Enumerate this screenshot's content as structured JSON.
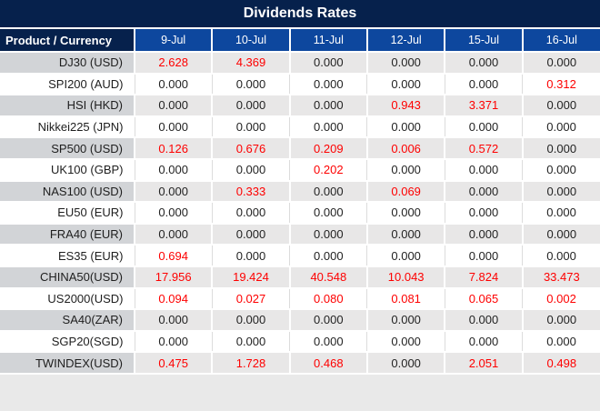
{
  "title": "Dividends Rates",
  "table": {
    "header": [
      "Product / Currency",
      "9-Jul",
      "10-Jul",
      "11-Jul",
      "12-Jul",
      "15-Jul",
      "16-Jul"
    ],
    "rows": [
      {
        "label": "DJ30 (USD)",
        "values": [
          "2.628",
          "4.369",
          "0.000",
          "0.000",
          "0.000",
          "0.000"
        ],
        "red": [
          true,
          true,
          false,
          false,
          false,
          false
        ]
      },
      {
        "label": "SPI200 (AUD)",
        "values": [
          "0.000",
          "0.000",
          "0.000",
          "0.000",
          "0.000",
          "0.312"
        ],
        "red": [
          false,
          false,
          false,
          false,
          false,
          true
        ]
      },
      {
        "label": "HSI (HKD)",
        "values": [
          "0.000",
          "0.000",
          "0.000",
          "0.943",
          "3.371",
          "0.000"
        ],
        "red": [
          false,
          false,
          false,
          true,
          true,
          false
        ]
      },
      {
        "label": "Nikkei225 (JPN)",
        "values": [
          "0.000",
          "0.000",
          "0.000",
          "0.000",
          "0.000",
          "0.000"
        ],
        "red": [
          false,
          false,
          false,
          false,
          false,
          false
        ]
      },
      {
        "label": "SP500 (USD)",
        "values": [
          "0.126",
          "0.676",
          "0.209",
          "0.006",
          "0.572",
          "0.000"
        ],
        "red": [
          true,
          true,
          true,
          true,
          true,
          false
        ]
      },
      {
        "label": "UK100 (GBP)",
        "values": [
          "0.000",
          "0.000",
          "0.202",
          "0.000",
          "0.000",
          "0.000"
        ],
        "red": [
          false,
          false,
          true,
          false,
          false,
          false
        ]
      },
      {
        "label": "NAS100 (USD)",
        "values": [
          "0.000",
          "0.333",
          "0.000",
          "0.069",
          "0.000",
          "0.000"
        ],
        "red": [
          false,
          true,
          false,
          true,
          false,
          false
        ]
      },
      {
        "label": "EU50 (EUR)",
        "values": [
          "0.000",
          "0.000",
          "0.000",
          "0.000",
          "0.000",
          "0.000"
        ],
        "red": [
          false,
          false,
          false,
          false,
          false,
          false
        ]
      },
      {
        "label": "FRA40 (EUR)",
        "values": [
          "0.000",
          "0.000",
          "0.000",
          "0.000",
          "0.000",
          "0.000"
        ],
        "red": [
          false,
          false,
          false,
          false,
          false,
          false
        ]
      },
      {
        "label": "ES35 (EUR)",
        "values": [
          "0.694",
          "0.000",
          "0.000",
          "0.000",
          "0.000",
          "0.000"
        ],
        "red": [
          true,
          false,
          false,
          false,
          false,
          false
        ]
      },
      {
        "label": "CHINA50(USD)",
        "values": [
          "17.956",
          "19.424",
          "40.548",
          "10.043",
          "7.824",
          "33.473"
        ],
        "red": [
          true,
          true,
          true,
          true,
          true,
          true
        ]
      },
      {
        "label": "US2000(USD)",
        "values": [
          "0.094",
          "0.027",
          "0.080",
          "0.081",
          "0.065",
          "0.002"
        ],
        "red": [
          true,
          true,
          true,
          true,
          true,
          true
        ]
      },
      {
        "label": "SA40(ZAR)",
        "values": [
          "0.000",
          "0.000",
          "0.000",
          "0.000",
          "0.000",
          "0.000"
        ],
        "red": [
          false,
          false,
          false,
          false,
          false,
          false
        ]
      },
      {
        "label": "SGP20(SGD)",
        "values": [
          "0.000",
          "0.000",
          "0.000",
          "0.000",
          "0.000",
          "0.000"
        ],
        "red": [
          false,
          false,
          false,
          false,
          false,
          false
        ]
      },
      {
        "label": "TWINDEX(USD)",
        "values": [
          "0.475",
          "1.728",
          "0.468",
          "0.000",
          "2.051",
          "0.498"
        ],
        "red": [
          true,
          true,
          true,
          false,
          true,
          true
        ]
      }
    ]
  },
  "colors": {
    "title_bar": "#06214C",
    "header_blue": "#0D479E",
    "row_gray_label": "#D2D4D7",
    "row_gray_value": "#E8E7E7",
    "row_white": "#FFFFFF",
    "footer_strip": "#E9E9E9",
    "red_value": "#FE0000",
    "black_value": "#232323"
  },
  "chart_data": {
    "type": "table",
    "title": "Dividends Rates",
    "columns": [
      "Product / Currency",
      "9-Jul",
      "10-Jul",
      "11-Jul",
      "12-Jul",
      "15-Jul",
      "16-Jul"
    ],
    "rows": [
      {
        "label": "DJ30 (USD)",
        "values": [
          2.628,
          4.369,
          0.0,
          0.0,
          0.0,
          0.0
        ]
      },
      {
        "label": "SPI200 (AUD)",
        "values": [
          0.0,
          0.0,
          0.0,
          0.0,
          0.0,
          0.312
        ]
      },
      {
        "label": "HSI (HKD)",
        "values": [
          0.0,
          0.0,
          0.0,
          0.943,
          3.371,
          0.0
        ]
      },
      {
        "label": "Nikkei225 (JPN)",
        "values": [
          0.0,
          0.0,
          0.0,
          0.0,
          0.0,
          0.0
        ]
      },
      {
        "label": "SP500 (USD)",
        "values": [
          0.126,
          0.676,
          0.209,
          0.006,
          0.572,
          0.0
        ]
      },
      {
        "label": "UK100 (GBP)",
        "values": [
          0.0,
          0.0,
          0.202,
          0.0,
          0.0,
          0.0
        ]
      },
      {
        "label": "NAS100 (USD)",
        "values": [
          0.0,
          0.333,
          0.0,
          0.069,
          0.0,
          0.0
        ]
      },
      {
        "label": "EU50 (EUR)",
        "values": [
          0.0,
          0.0,
          0.0,
          0.0,
          0.0,
          0.0
        ]
      },
      {
        "label": "FRA40 (EUR)",
        "values": [
          0.0,
          0.0,
          0.0,
          0.0,
          0.0,
          0.0
        ]
      },
      {
        "label": "ES35 (EUR)",
        "values": [
          0.694,
          0.0,
          0.0,
          0.0,
          0.0,
          0.0
        ]
      },
      {
        "label": "CHINA50(USD)",
        "values": [
          17.956,
          19.424,
          40.548,
          10.043,
          7.824,
          33.473
        ]
      },
      {
        "label": "US2000(USD)",
        "values": [
          0.094,
          0.027,
          0.08,
          0.081,
          0.065,
          0.002
        ]
      },
      {
        "label": "SA40(ZAR)",
        "values": [
          0.0,
          0.0,
          0.0,
          0.0,
          0.0,
          0.0
        ]
      },
      {
        "label": "SGP20(SGD)",
        "values": [
          0.0,
          0.0,
          0.0,
          0.0,
          0.0,
          0.0
        ]
      },
      {
        "label": "TWINDEX(USD)",
        "values": [
          0.475,
          1.728,
          0.468,
          0.0,
          2.051,
          0.498
        ]
      }
    ],
    "notes": "Non-zero dividend rates rendered in red; zero values in black. Striped rows alternate gray/white."
  }
}
